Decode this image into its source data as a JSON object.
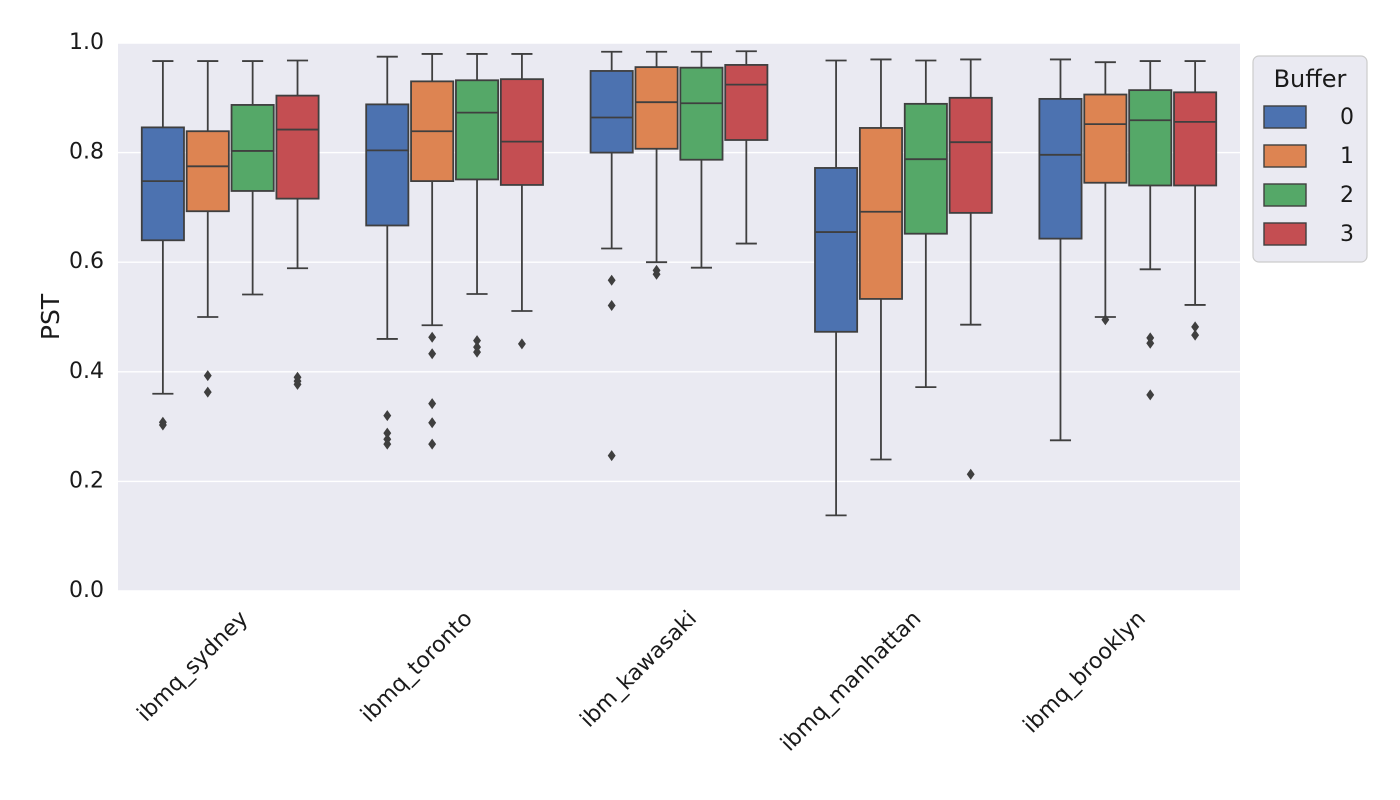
{
  "chart_data": {
    "type": "box",
    "title": "",
    "xlabel": "",
    "ylabel": "PST",
    "ylim": [
      0,
      1
    ],
    "yticks": [
      0.0,
      0.2,
      0.4,
      0.6,
      0.8,
      1.0
    ],
    "ytick_labels": [
      "0.0",
      "0.2",
      "0.4",
      "0.6",
      "0.8",
      "1.0"
    ],
    "grid": true,
    "legend": {
      "title": "Buffer",
      "position": "top-right",
      "entries": [
        "0",
        "1",
        "2",
        "3"
      ]
    },
    "colors": [
      "#4c72b0",
      "#dd8452",
      "#55a868",
      "#c44e52"
    ],
    "categories": [
      "ibmq_sydney",
      "ibmq_toronto",
      "ibm_kawasaki",
      "ibmq_manhattan",
      "ibmq_brooklyn"
    ],
    "series": [
      {
        "name": "0",
        "boxes": [
          {
            "whislo": 0.36,
            "q1": 0.64,
            "med": 0.748,
            "q3": 0.846,
            "whishi": 0.967,
            "fliers": [
              0.303,
              0.308
            ]
          },
          {
            "whislo": 0.46,
            "q1": 0.667,
            "med": 0.804,
            "q3": 0.888,
            "whishi": 0.975,
            "fliers": [
              0.268,
              0.277,
              0.288,
              0.32
            ]
          },
          {
            "whislo": 0.625,
            "q1": 0.8,
            "med": 0.864,
            "q3": 0.949,
            "whishi": 0.984,
            "fliers": [
              0.247,
              0.521,
              0.567
            ]
          },
          {
            "whislo": 0.138,
            "q1": 0.473,
            "med": 0.655,
            "q3": 0.772,
            "whishi": 0.968,
            "fliers": []
          },
          {
            "whislo": 0.275,
            "q1": 0.643,
            "med": 0.796,
            "q3": 0.898,
            "whishi": 0.97,
            "fliers": []
          }
        ]
      },
      {
        "name": "1",
        "boxes": [
          {
            "whislo": 0.5,
            "q1": 0.693,
            "med": 0.775,
            "q3": 0.839,
            "whishi": 0.967,
            "fliers": [
              0.363,
              0.393
            ]
          },
          {
            "whislo": 0.485,
            "q1": 0.748,
            "med": 0.839,
            "q3": 0.93,
            "whishi": 0.98,
            "fliers": [
              0.268,
              0.307,
              0.342,
              0.433,
              0.463
            ]
          },
          {
            "whislo": 0.6,
            "q1": 0.807,
            "med": 0.892,
            "q3": 0.956,
            "whishi": 0.984,
            "fliers": [
              0.578,
              0.585
            ]
          },
          {
            "whislo": 0.24,
            "q1": 0.533,
            "med": 0.692,
            "q3": 0.845,
            "whishi": 0.97,
            "fliers": []
          },
          {
            "whislo": 0.5,
            "q1": 0.745,
            "med": 0.852,
            "q3": 0.906,
            "whishi": 0.965,
            "fliers": [
              0.495
            ]
          }
        ]
      },
      {
        "name": "2",
        "boxes": [
          {
            "whislo": 0.541,
            "q1": 0.73,
            "med": 0.803,
            "q3": 0.887,
            "whishi": 0.967,
            "fliers": []
          },
          {
            "whislo": 0.542,
            "q1": 0.751,
            "med": 0.873,
            "q3": 0.932,
            "whishi": 0.98,
            "fliers": [
              0.436,
              0.445,
              0.457
            ]
          },
          {
            "whislo": 0.59,
            "q1": 0.787,
            "med": 0.89,
            "q3": 0.955,
            "whishi": 0.984,
            "fliers": []
          },
          {
            "whislo": 0.372,
            "q1": 0.652,
            "med": 0.788,
            "q3": 0.889,
            "whishi": 0.968,
            "fliers": []
          },
          {
            "whislo": 0.587,
            "q1": 0.74,
            "med": 0.859,
            "q3": 0.914,
            "whishi": 0.967,
            "fliers": [
              0.358,
              0.452,
              0.462
            ]
          }
        ]
      },
      {
        "name": "3",
        "boxes": [
          {
            "whislo": 0.589,
            "q1": 0.716,
            "med": 0.842,
            "q3": 0.904,
            "whishi": 0.968,
            "fliers": [
              0.377,
              0.383,
              0.39
            ]
          },
          {
            "whislo": 0.511,
            "q1": 0.741,
            "med": 0.82,
            "q3": 0.934,
            "whishi": 0.98,
            "fliers": [
              0.451
            ]
          },
          {
            "whislo": 0.634,
            "q1": 0.823,
            "med": 0.924,
            "q3": 0.96,
            "whishi": 0.985,
            "fliers": []
          },
          {
            "whislo": 0.486,
            "q1": 0.69,
            "med": 0.819,
            "q3": 0.9,
            "whishi": 0.97,
            "fliers": [
              0.213
            ]
          },
          {
            "whislo": 0.522,
            "q1": 0.74,
            "med": 0.856,
            "q3": 0.91,
            "whishi": 0.967,
            "fliers": [
              0.467,
              0.482
            ]
          }
        ]
      }
    ]
  }
}
